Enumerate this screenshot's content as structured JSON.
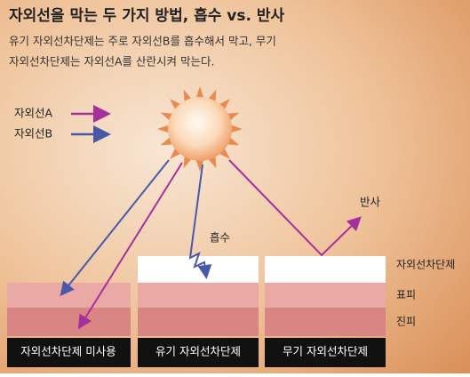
{
  "header": {
    "title": "자외선을 막는 두 가지 방법, 흡수 vs. 반사",
    "description": [
      "유기 자외선차단제는 주로 자외선B를 흡수해서 막고, 무기",
      "자외선차단제는 자외선A를 산란시켜 막는다."
    ]
  },
  "legend": [
    "자외선A",
    "자외선B"
  ],
  "annotations": {
    "absorb": "흡수",
    "reflect": "반사"
  },
  "layers": [
    "자외선차단제",
    "표피",
    "진피"
  ],
  "panels": [
    "자외선차단제 미사용",
    "유기 자외선차단제",
    "무기 자외선차단제"
  ]
}
